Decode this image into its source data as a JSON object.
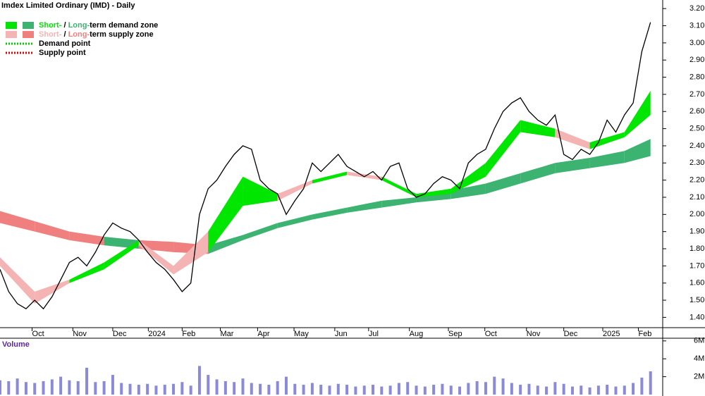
{
  "chart_data": {
    "type": "stock",
    "title": "Imdex Limited Ordinary (IMD) - Daily",
    "legend": [
      {
        "parts": [
          "Short-",
          " / ",
          "Long-",
          "term demand zone"
        ],
        "colors": [
          "#00e600",
          "#3cb371"
        ]
      },
      {
        "parts": [
          "Short-",
          " / ",
          "Long-",
          "term supply zone"
        ],
        "colors": [
          "#f4b4b4",
          "#f08080"
        ]
      },
      {
        "parts": [
          "Demand point"
        ],
        "colors": [
          "#00cc00"
        ]
      },
      {
        "parts": [
          "Supply point"
        ],
        "colors": [
          "#dd0000"
        ]
      }
    ],
    "x": [
      0,
      1,
      2,
      3,
      4,
      5,
      6,
      7,
      8,
      9,
      10,
      11,
      12,
      13,
      14,
      15,
      16,
      17,
      18,
      19,
      20,
      21,
      22,
      23,
      24,
      25,
      26,
      27,
      28,
      29,
      30,
      31,
      32,
      33,
      34,
      35,
      36,
      37,
      38,
      39,
      40,
      41,
      42,
      43,
      44,
      45,
      46,
      47,
      48,
      49,
      50,
      51,
      52,
      53,
      54,
      55,
      56,
      57,
      58,
      59,
      60,
      61,
      62,
      63,
      64,
      65,
      66,
      67,
      68,
      69,
      70,
      71,
      72,
      73,
      74,
      75
    ],
    "series": [
      {
        "name": "Close",
        "color": "#000000",
        "values": [
          1.68,
          1.55,
          1.48,
          1.45,
          1.5,
          1.45,
          1.52,
          1.62,
          1.72,
          1.75,
          1.7,
          1.78,
          1.88,
          1.95,
          1.92,
          1.9,
          1.85,
          1.78,
          1.72,
          1.68,
          1.62,
          1.55,
          1.6,
          2.0,
          2.15,
          2.2,
          2.28,
          2.35,
          2.4,
          2.38,
          2.2,
          2.15,
          2.12,
          2.0,
          2.08,
          2.15,
          2.3,
          2.25,
          2.3,
          2.35,
          2.28,
          2.25,
          2.22,
          2.25,
          2.2,
          2.28,
          2.3,
          2.15,
          2.1,
          2.12,
          2.18,
          2.22,
          2.2,
          2.15,
          2.3,
          2.35,
          2.38,
          2.5,
          2.6,
          2.65,
          2.68,
          2.6,
          2.55,
          2.52,
          2.58,
          2.35,
          2.32,
          2.38,
          2.35,
          2.42,
          2.55,
          2.48,
          2.58,
          2.65,
          2.95,
          3.12
        ]
      }
    ],
    "bands": [
      {
        "x": [
          0,
          4,
          8,
          12,
          16,
          20,
          24,
          28,
          32,
          36,
          40,
          44,
          48,
          52,
          56,
          60,
          64,
          68,
          72,
          75
        ],
        "upper": [
          1.75,
          1.55,
          1.62,
          1.72,
          1.85,
          1.7,
          1.9,
          2.22,
          2.12,
          2.2,
          2.25,
          2.22,
          2.12,
          2.15,
          2.3,
          2.55,
          2.5,
          2.42,
          2.48,
          2.72
        ],
        "lower": [
          1.7,
          1.48,
          1.6,
          1.68,
          1.82,
          1.65,
          1.78,
          2.05,
          2.08,
          2.18,
          2.23,
          2.2,
          2.1,
          2.12,
          2.22,
          2.48,
          2.45,
          2.38,
          2.45,
          2.58
        ],
        "colors": [
          "#00e600",
          "#f4b4b4"
        ]
      },
      {
        "x": [
          0,
          4,
          8,
          12,
          16,
          20,
          24,
          28,
          32,
          36,
          40,
          44,
          48,
          52,
          56,
          60,
          64,
          68,
          72,
          75
        ],
        "upper": [
          2.02,
          1.96,
          1.9,
          1.87,
          1.85,
          1.84,
          1.82,
          1.88,
          1.95,
          2.0,
          2.04,
          2.08,
          2.1,
          2.14,
          2.18,
          2.24,
          2.3,
          2.33,
          2.37,
          2.44
        ],
        "lower": [
          1.95,
          1.9,
          1.85,
          1.82,
          1.8,
          1.78,
          1.77,
          1.85,
          1.92,
          1.97,
          2.01,
          2.04,
          2.07,
          2.09,
          2.12,
          2.18,
          2.24,
          2.27,
          2.3,
          2.34
        ],
        "colors": [
          "#3cb371",
          "#f08080"
        ]
      }
    ],
    "xlim": [
      0,
      76
    ],
    "xticks": [
      {
        "value": 3.7,
        "label": "Oct"
      },
      {
        "value": 8.4,
        "label": "Nov"
      },
      {
        "value": 13,
        "label": "Dec"
      },
      {
        "value": 17.1,
        "label": "2024"
      },
      {
        "value": 21,
        "label": "Feb"
      },
      {
        "value": 25.4,
        "label": "Mar"
      },
      {
        "value": 29.7,
        "label": "Apr"
      },
      {
        "value": 33.9,
        "label": "May"
      },
      {
        "value": 38.6,
        "label": "Jun"
      },
      {
        "value": 42.5,
        "label": "Jul"
      },
      {
        "value": 47.2,
        "label": "Aug"
      },
      {
        "value": 51.7,
        "label": "Sep"
      },
      {
        "value": 55.9,
        "label": "Oct"
      },
      {
        "value": 60.7,
        "label": "Nov"
      },
      {
        "value": 65,
        "label": "Dec"
      },
      {
        "value": 69.5,
        "label": "2025"
      },
      {
        "value": 73.6,
        "label": "Feb"
      }
    ],
    "ylim": [
      1.34,
      3.25
    ],
    "yticks": [
      {
        "value": 1.4,
        "label": "1.40"
      },
      {
        "value": 1.5,
        "label": "1.50"
      },
      {
        "value": 1.6,
        "label": "1.60"
      },
      {
        "value": 1.7,
        "label": "1.70"
      },
      {
        "value": 1.8,
        "label": "1.80"
      },
      {
        "value": 1.9,
        "label": "1.90"
      },
      {
        "value": 2.0,
        "label": "2.00"
      },
      {
        "value": 2.1,
        "label": "2.10"
      },
      {
        "value": 2.2,
        "label": "2.20"
      },
      {
        "value": 2.3,
        "label": "2.30"
      },
      {
        "value": 2.4,
        "label": "2.40"
      },
      {
        "value": 2.5,
        "label": "2.50"
      },
      {
        "value": 2.6,
        "label": "2.60"
      },
      {
        "value": 2.7,
        "label": "2.70"
      },
      {
        "value": 2.8,
        "label": "2.80"
      },
      {
        "value": 2.9,
        "label": "2.90"
      },
      {
        "value": 3.0,
        "label": "3.00"
      },
      {
        "value": 3.1,
        "label": "3.10"
      },
      {
        "value": 3.2,
        "label": "3.20"
      }
    ],
    "volume": {
      "label": "Volume",
      "color": "#8a8ad8",
      "values": [
        1600000,
        1500000,
        1800000,
        1400000,
        1300000,
        1500000,
        1700000,
        2000000,
        1600000,
        1500000,
        3000000,
        1400000,
        1500000,
        2200000,
        1300000,
        1200000,
        1100000,
        1200000,
        1000000,
        1100000,
        1200000,
        1400000,
        1000000,
        3200000,
        2200000,
        1700000,
        1500000,
        1400000,
        1800000,
        1300000,
        1200000,
        1100000,
        1500000,
        2000000,
        1200000,
        1100000,
        1300000,
        1100000,
        1000000,
        1200000,
        1100000,
        900000,
        1000000,
        1100000,
        900000,
        1000000,
        1300000,
        1400000,
        1000000,
        900000,
        1100000,
        1200000,
        1000000,
        900000,
        1300000,
        1500000,
        1400000,
        2000000,
        1800000,
        1300000,
        1100000,
        1200000,
        1000000,
        900000,
        1400000,
        1200000,
        900000,
        1000000,
        800000,
        1000000,
        1100000,
        900000,
        1000000,
        1300000,
        1900000,
        2600000
      ]
    },
    "vlim": [
      0,
      6300000
    ],
    "vticks": [
      {
        "value": 2000000,
        "label": "2M"
      },
      {
        "value": 4000000,
        "label": "4M"
      },
      {
        "value": 6000000,
        "label": "6M"
      }
    ]
  }
}
